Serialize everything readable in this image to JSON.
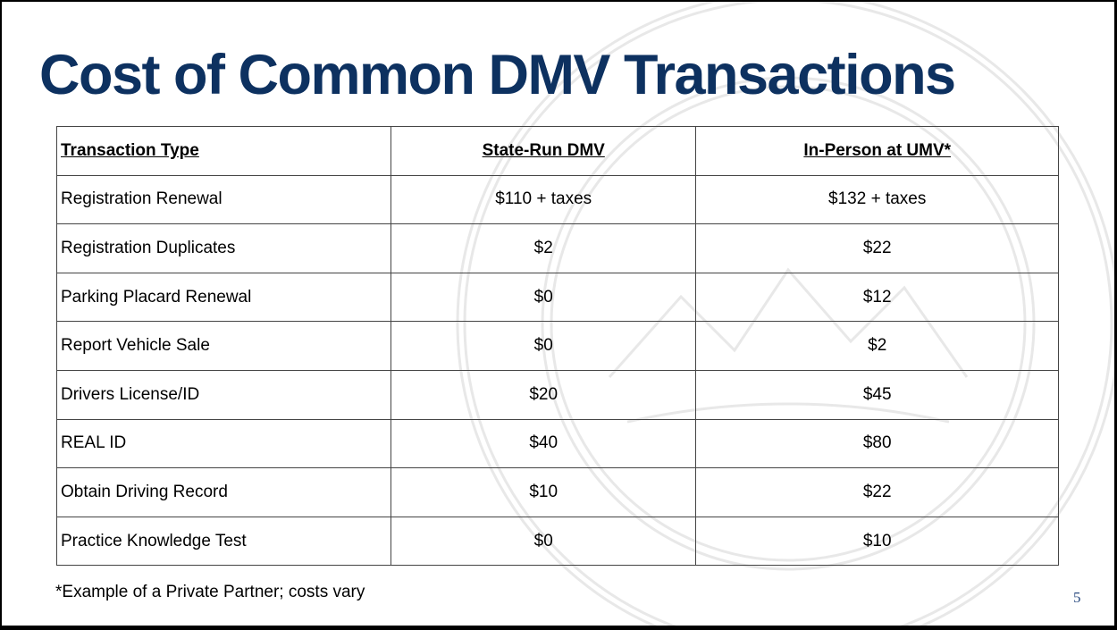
{
  "slide": {
    "title": "Cost of Common DMV Transactions",
    "table": {
      "headers": [
        "Transaction Type",
        "State-Run DMV",
        "In-Person at UMV*"
      ],
      "rows": [
        [
          "Registration Renewal",
          "$110 + taxes",
          "$132 + taxes"
        ],
        [
          "Registration Duplicates",
          "$2",
          "$22"
        ],
        [
          "Parking Placard Renewal",
          "$0",
          "$12"
        ],
        [
          "Report Vehicle Sale",
          "$0",
          "$2"
        ],
        [
          "Drivers License/ID",
          "$20",
          "$45"
        ],
        [
          "REAL ID",
          "$40",
          "$80"
        ],
        [
          "Obtain Driving Record",
          "$10",
          "$22"
        ],
        [
          "Practice Knowledge Test",
          "$0",
          "$10"
        ]
      ]
    },
    "footnote": "*Example of a Private Partner; costs vary",
    "page_number": "5",
    "colors": {
      "title": "#0d3160",
      "watermark": "#e6e6e6"
    },
    "watermark": "state-seal"
  }
}
